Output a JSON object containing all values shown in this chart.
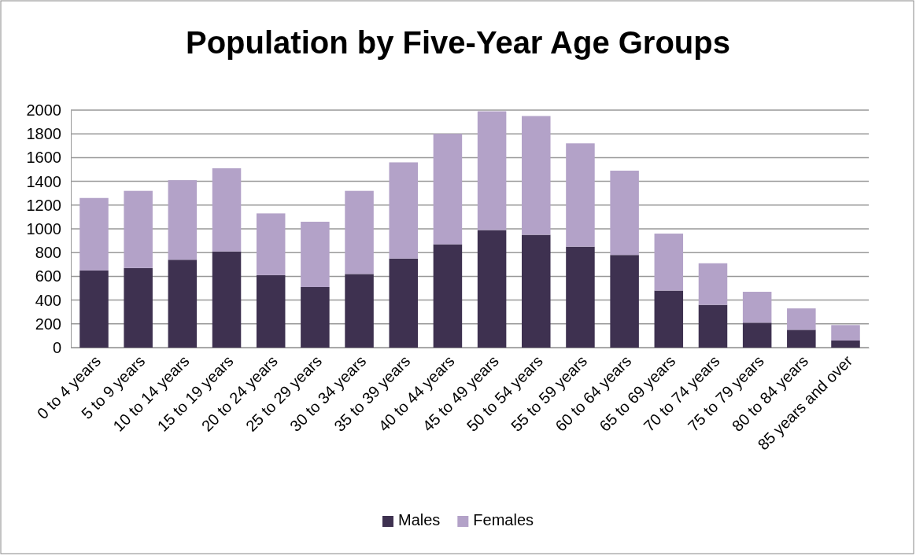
{
  "chart_data": {
    "type": "bar",
    "title": "Population by Five-Year Age Groups",
    "stacked": true,
    "categories": [
      "0 to 4 years",
      "5 to 9 years",
      "10 to 14 years",
      "15 to 19 years",
      "20 to 24 years",
      "25 to 29 years",
      "30 to 34 years",
      "35 to 39 years",
      "40 to 44 years",
      "45 to 49 years",
      "50 to 54 years",
      "55 to 59 years",
      "60 to 64 years",
      "65 to 69 years",
      "70 to 74 years",
      "75 to 79 years",
      "80 to 84 years",
      "85 years and over"
    ],
    "series": [
      {
        "name": "Males",
        "color": "#3e3150",
        "values": [
          650,
          670,
          740,
          810,
          610,
          510,
          620,
          750,
          870,
          990,
          950,
          850,
          780,
          480,
          360,
          210,
          150,
          60
        ]
      },
      {
        "name": "Females",
        "color": "#b3a2c8",
        "values": [
          610,
          650,
          670,
          700,
          520,
          550,
          700,
          810,
          930,
          1000,
          1000,
          870,
          710,
          480,
          350,
          260,
          180,
          130
        ]
      }
    ],
    "ylim": [
      0,
      2000
    ],
    "yticks": [
      0,
      200,
      400,
      600,
      800,
      1000,
      1200,
      1400,
      1600,
      1800,
      2000
    ],
    "grid": "y",
    "legend": "bottom"
  }
}
